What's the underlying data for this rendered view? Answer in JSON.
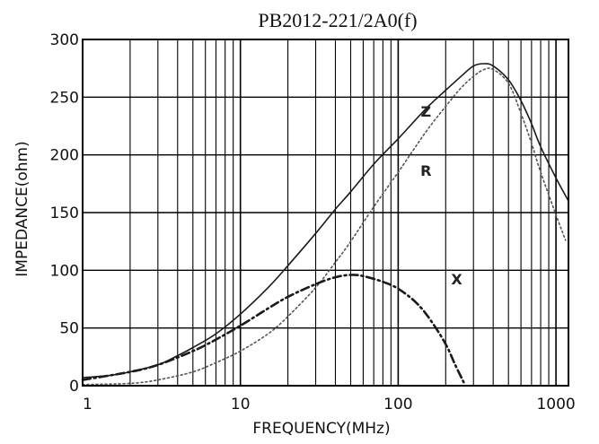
{
  "chart_data": {
    "type": "line",
    "title": "PB2012-221/2A0(f)",
    "xlabel": "FREQUENCY(MHz)",
    "ylabel": "IMPEDANCE(ohm)",
    "x_scale": "log",
    "xlim": [
      1,
      1200
    ],
    "ylim": [
      0,
      300
    ],
    "x_ticks": [
      "1",
      "10",
      "100",
      "1000"
    ],
    "y_ticks": [
      "0",
      "50",
      "100",
      "150",
      "200",
      "250",
      "300"
    ],
    "grid": true,
    "series": [
      {
        "name": "Z",
        "style": "solid",
        "color": "#1a1a1a",
        "points": [
          [
            1,
            7
          ],
          [
            1.5,
            9
          ],
          [
            2,
            12
          ],
          [
            3,
            18
          ],
          [
            4,
            26
          ],
          [
            5,
            33
          ],
          [
            7,
            45
          ],
          [
            10,
            62
          ],
          [
            15,
            85
          ],
          [
            20,
            104
          ],
          [
            30,
            132
          ],
          [
            40,
            153
          ],
          [
            50,
            168
          ],
          [
            70,
            192
          ],
          [
            100,
            214
          ],
          [
            150,
            240
          ],
          [
            200,
            256
          ],
          [
            250,
            268
          ],
          [
            300,
            277
          ],
          [
            350,
            279
          ],
          [
            400,
            277
          ],
          [
            500,
            265
          ],
          [
            600,
            247
          ],
          [
            700,
            227
          ],
          [
            800,
            207
          ],
          [
            1000,
            180
          ],
          [
            1200,
            160
          ]
        ]
      },
      {
        "name": "R",
        "style": "dotted",
        "color": "#555555",
        "points": [
          [
            1,
            1
          ],
          [
            2,
            2
          ],
          [
            3,
            5
          ],
          [
            5,
            12
          ],
          [
            7,
            20
          ],
          [
            10,
            30
          ],
          [
            15,
            45
          ],
          [
            20,
            60
          ],
          [
            30,
            85
          ],
          [
            40,
            107
          ],
          [
            50,
            125
          ],
          [
            70,
            155
          ],
          [
            100,
            185
          ],
          [
            150,
            220
          ],
          [
            200,
            242
          ],
          [
            250,
            258
          ],
          [
            300,
            268
          ],
          [
            350,
            274
          ],
          [
            400,
            274
          ],
          [
            500,
            262
          ],
          [
            600,
            236
          ],
          [
            700,
            210
          ],
          [
            800,
            185
          ],
          [
            1000,
            148
          ],
          [
            1150,
            126
          ]
        ]
      },
      {
        "name": "X",
        "style": "dashdot",
        "color": "#1a1a1a",
        "points": [
          [
            1,
            5
          ],
          [
            2,
            12
          ],
          [
            3,
            18
          ],
          [
            5,
            30
          ],
          [
            7,
            40
          ],
          [
            10,
            52
          ],
          [
            15,
            67
          ],
          [
            20,
            77
          ],
          [
            30,
            88
          ],
          [
            40,
            94
          ],
          [
            50,
            96
          ],
          [
            60,
            95
          ],
          [
            80,
            90
          ],
          [
            100,
            84
          ],
          [
            130,
            72
          ],
          [
            160,
            57
          ],
          [
            200,
            36
          ],
          [
            230,
            18
          ],
          [
            260,
            3
          ]
        ]
      }
    ]
  }
}
